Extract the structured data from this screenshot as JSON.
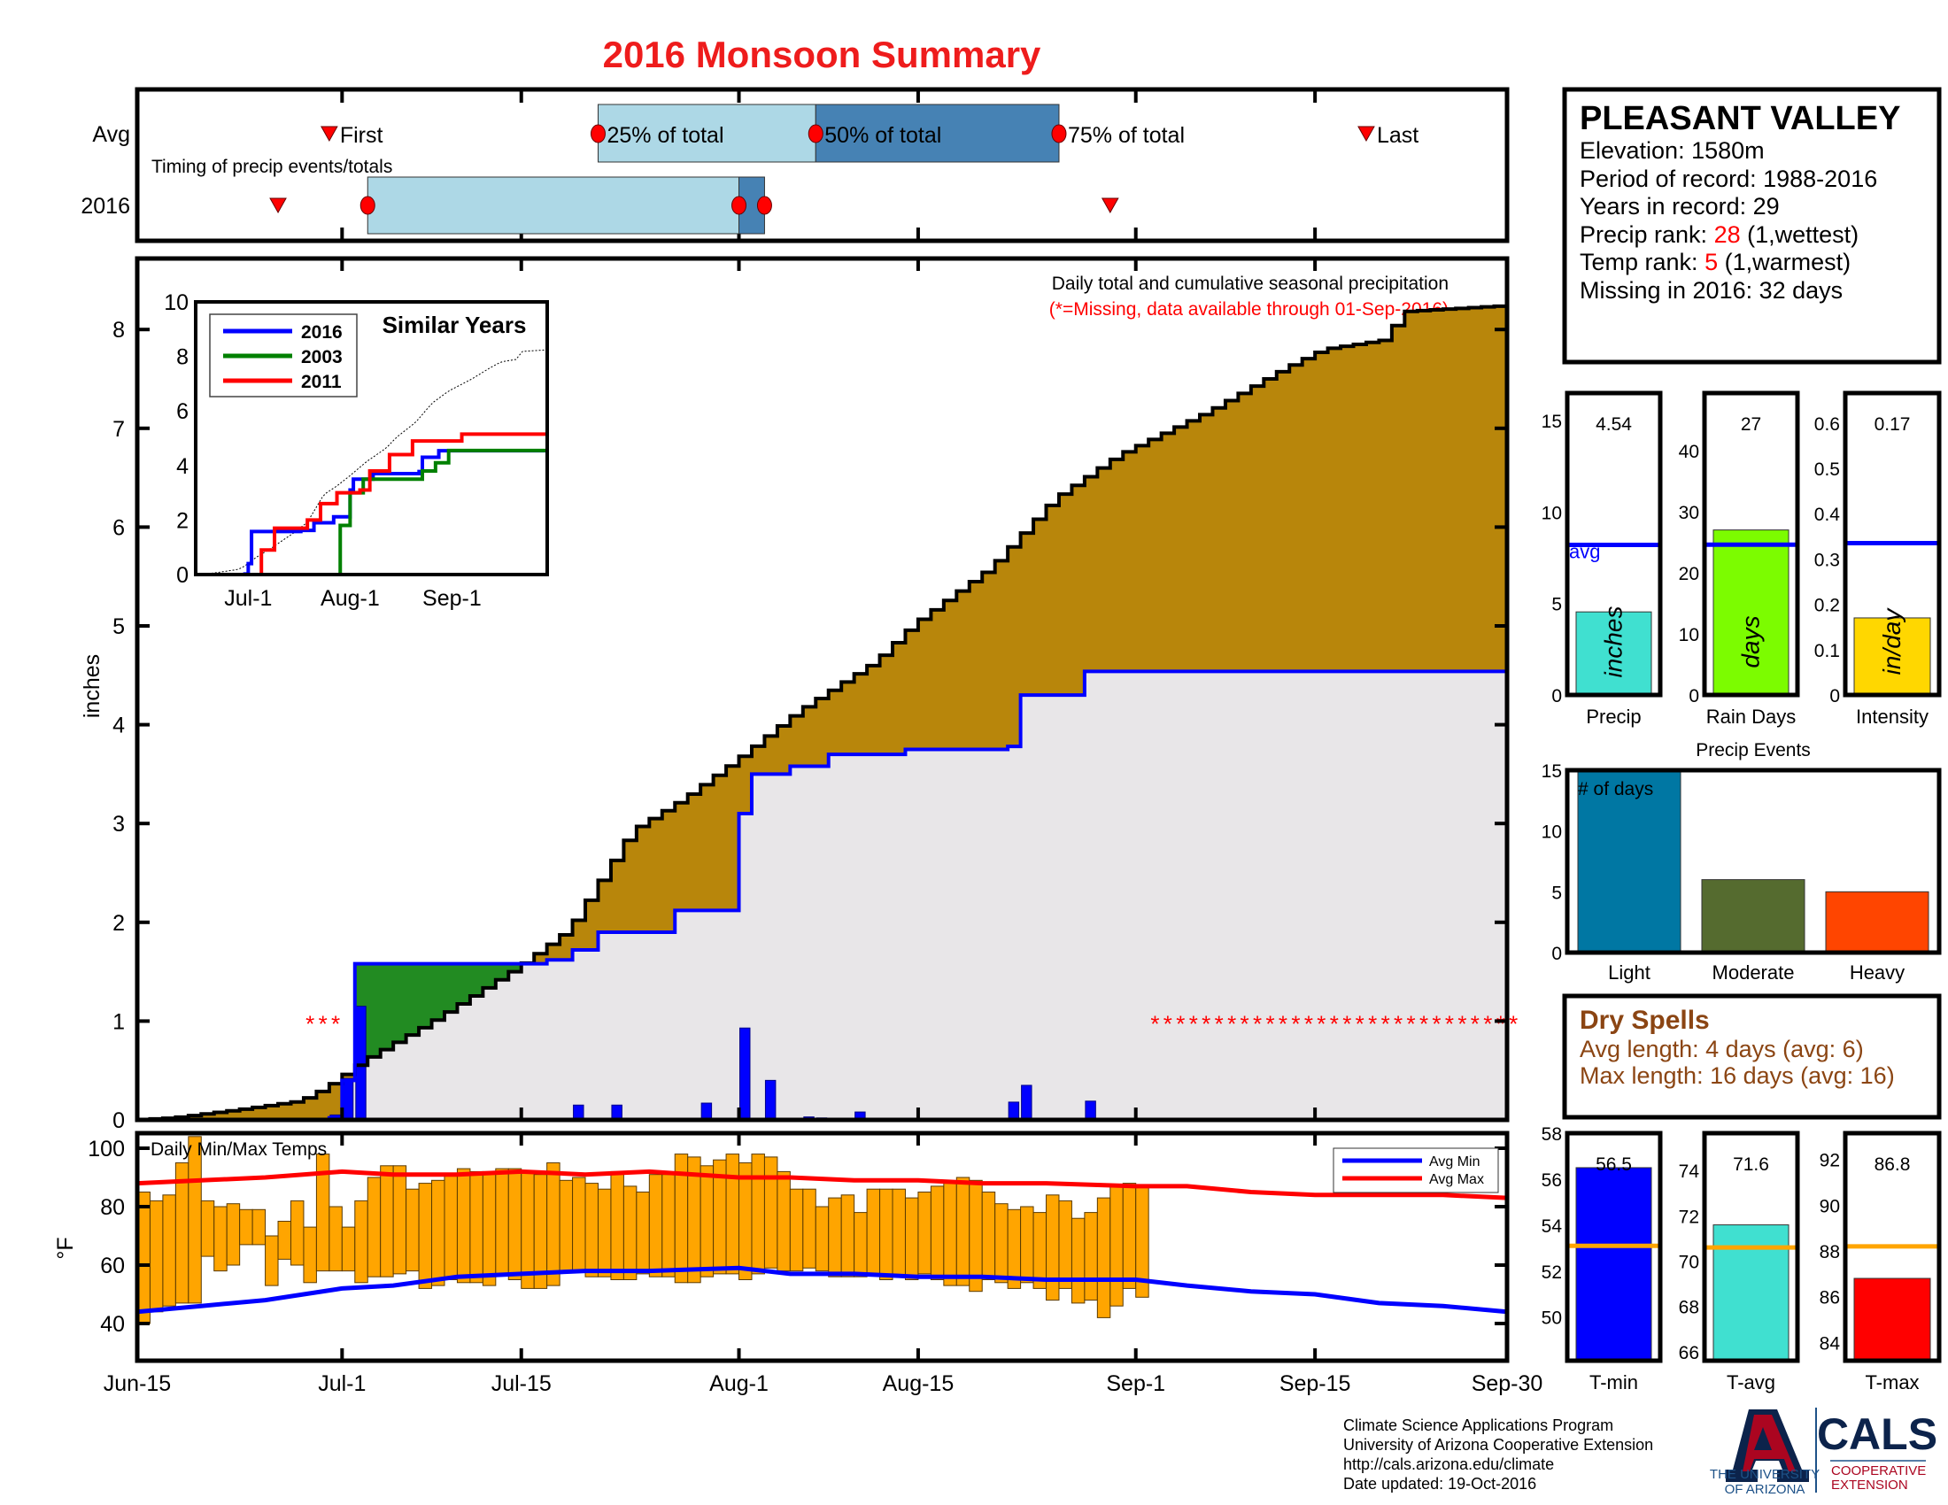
{
  "title": "2016 Monsoon Summary",
  "colors": {
    "title": "#ee1c1c",
    "avg_fill": "#b8860b",
    "surplus_fill": "#228b22",
    "base_fill": "#e8e6e8",
    "cum_2016": "#0000ff",
    "daily_bar": "#0000ff",
    "temp_bar": "#ffa500",
    "avg_min": "#0000ff",
    "avg_max": "#ff0000",
    "missing": "#ff0000",
    "brown_text": "#8b4513",
    "light_box": "#add8e6",
    "dark_box": "#4682b4"
  },
  "timing": {
    "row_labels": [
      "Avg",
      "2016"
    ],
    "caption": "Timing of precip events/totals",
    "labels": {
      "first": "First",
      "p25": "25% of total",
      "p50": "50% of total",
      "p75": "75% of total",
      "last": "Last"
    },
    "avg": {
      "first": "06-30",
      "p25": "07-21",
      "p50": "08-07",
      "p75": "08-26",
      "last": "09-19"
    },
    "y2016": {
      "first": "06-26",
      "p25": "07-03",
      "p50": "08-01",
      "p75": "08-03",
      "last": "08-30"
    }
  },
  "info": {
    "station": "PLEASANT VALLEY",
    "elevation": "Elevation: 1580m",
    "period": "Period of record: 1988-2016",
    "years": "Years in record: 29",
    "precip_rank_label": "Precip rank: ",
    "precip_rank": "28",
    "precip_rank_note": " (1,wettest)",
    "temp_rank_label": "Temp rank: ",
    "temp_rank": "5",
    "temp_rank_note": " (1,warmest)",
    "missing": "Missing in 2016: 32 days"
  },
  "dry_spells": {
    "title": "Dry Spells",
    "avg_length": "Avg length: 4 days (avg: 6)",
    "max_length": "Max length: 16 days (avg: 16)"
  },
  "footer": {
    "lines": [
      "Climate Science Applications Program",
      "University of Arizona Cooperative Extension",
      "http://cals.arizona.edu/climate",
      " Date updated: 19-Oct-2016"
    ],
    "logo_ua": [
      "THE UNIVERSITY",
      "OF ARIZONA"
    ],
    "logo_cals": "CALS",
    "logo_coop": [
      "COOPERATIVE",
      "EXTENSION"
    ]
  },
  "chart_data": [
    {
      "id": "precip",
      "type": "area",
      "ylabel": "inches",
      "ylim": [
        0,
        8.72
      ],
      "yticks": [
        0,
        1,
        2,
        3,
        4,
        5,
        6,
        7,
        8
      ],
      "xlim": [
        "06-15",
        "09-30"
      ],
      "xticks": [
        {
          "d": "06-15",
          "label": "Jun-15"
        },
        {
          "d": "07-01",
          "label": "Jul-1"
        },
        {
          "d": "07-15",
          "label": "Jul-15"
        },
        {
          "d": "08-01",
          "label": "Aug-1"
        },
        {
          "d": "08-15",
          "label": "Aug-15"
        },
        {
          "d": "09-01",
          "label": "Sep-1"
        },
        {
          "d": "09-15",
          "label": "Sep-15"
        },
        {
          "d": "09-30",
          "label": "Sep-30"
        }
      ],
      "annotation": "Daily total and cumulative seasonal precipitation",
      "missing_note": "(*=Missing, data available through 01-Sep-2016)",
      "missing_marker": "*",
      "missing_level": 1,
      "missing_days": [
        "06-28",
        "06-29",
        "06-30",
        "09-02",
        "09-03",
        "09-04",
        "09-05",
        "09-06",
        "09-07",
        "09-08",
        "09-09",
        "09-10",
        "09-11",
        "09-12",
        "09-13",
        "09-14",
        "09-15",
        "09-16",
        "09-17",
        "09-18",
        "09-19",
        "09-20",
        "09-21",
        "09-22",
        "09-23",
        "09-24",
        "09-25",
        "09-26",
        "09-27",
        "09-28",
        "09-29",
        "09-30"
      ],
      "avg_cumulative": [
        [
          "06-15",
          0
        ],
        [
          "06-18",
          0.02
        ],
        [
          "06-23",
          0.1
        ],
        [
          "06-28",
          0.19
        ],
        [
          "06-30",
          0.32
        ],
        [
          "07-03",
          0.6
        ],
        [
          "07-08",
          0.97
        ],
        [
          "07-15",
          1.54
        ],
        [
          "07-19",
          1.92
        ],
        [
          "07-24",
          2.93
        ],
        [
          "07-28",
          3.25
        ],
        [
          "08-01",
          3.63
        ],
        [
          "08-06",
          4.14
        ],
        [
          "08-12",
          4.64
        ],
        [
          "08-15",
          5.02
        ],
        [
          "08-21",
          5.59
        ],
        [
          "08-26",
          6.29
        ],
        [
          "08-31",
          6.73
        ],
        [
          "09-07",
          7.17
        ],
        [
          "09-13",
          7.61
        ],
        [
          "09-16",
          7.8
        ],
        [
          "09-21",
          7.9
        ],
        [
          "09-22",
          8.18
        ],
        [
          "09-30",
          8.24
        ]
      ],
      "cumulative_2016": [
        [
          "06-15",
          0
        ],
        [
          "06-30",
          0.02
        ],
        [
          "07-01",
          0.4
        ],
        [
          "07-02",
          1.58
        ],
        [
          "07-17",
          1.62
        ],
        [
          "07-19",
          1.72
        ],
        [
          "07-21",
          1.9
        ],
        [
          "07-27",
          2.12
        ],
        [
          "08-01",
          3.1
        ],
        [
          "08-02",
          3.5
        ],
        [
          "08-05",
          3.58
        ],
        [
          "08-08",
          3.7
        ],
        [
          "08-14",
          3.75
        ],
        [
          "08-22",
          3.78
        ],
        [
          "08-23",
          4.3
        ],
        [
          "08-28",
          4.54
        ],
        [
          "09-30",
          4.54
        ]
      ],
      "daily_2016": [
        [
          "06-30",
          0.05
        ],
        [
          "07-01",
          0.42
        ],
        [
          "07-02",
          1.15
        ],
        [
          "07-19",
          0.15
        ],
        [
          "07-22",
          0.15
        ],
        [
          "07-29",
          0.17
        ],
        [
          "08-01",
          0.93
        ],
        [
          "08-03",
          0.4
        ],
        [
          "08-06",
          0.03
        ],
        [
          "08-07",
          0.02
        ],
        [
          "08-10",
          0.08
        ],
        [
          "08-22",
          0.18
        ],
        [
          "08-23",
          0.35
        ],
        [
          "08-28",
          0.19
        ]
      ]
    },
    {
      "id": "similar_years",
      "type": "line",
      "title": "Similar Years",
      "ylim": [
        0,
        10
      ],
      "yticks": [
        0,
        2,
        4,
        6,
        8,
        10
      ],
      "xticks": [
        {
          "d": "07-01",
          "label": "Jul-1"
        },
        {
          "d": "08-01",
          "label": "Aug-1"
        },
        {
          "d": "09-01",
          "label": "Sep-1"
        }
      ],
      "series": [
        {
          "name": "2016",
          "color": "#0000ff",
          "points": [
            [
              "06-15",
              0
            ],
            [
              "06-30",
              0.02
            ],
            [
              "07-01",
              0.4
            ],
            [
              "07-02",
              1.58
            ],
            [
              "07-17",
              1.62
            ],
            [
              "07-21",
              1.9
            ],
            [
              "07-27",
              2.12
            ],
            [
              "08-01",
              3.1
            ],
            [
              "08-02",
              3.5
            ],
            [
              "08-08",
              3.7
            ],
            [
              "08-22",
              3.78
            ],
            [
              "08-23",
              4.3
            ],
            [
              "08-28",
              4.54
            ],
            [
              "09-30",
              4.54
            ]
          ]
        },
        {
          "name": "2003",
          "color": "#008000",
          "points": [
            [
              "06-15",
              0
            ],
            [
              "07-27",
              0
            ],
            [
              "07-29",
              1.8
            ],
            [
              "08-01",
              3.0
            ],
            [
              "08-05",
              3.5
            ],
            [
              "08-20",
              3.5
            ],
            [
              "08-23",
              3.8
            ],
            [
              "08-27",
              4.1
            ],
            [
              "08-31",
              4.55
            ],
            [
              "09-30",
              4.55
            ]
          ]
        },
        {
          "name": "2011",
          "color": "#ff0000",
          "points": [
            [
              "06-15",
              0
            ],
            [
              "07-04",
              0
            ],
            [
              "07-05",
              0.9
            ],
            [
              "07-09",
              1.7
            ],
            [
              "07-19",
              2.0
            ],
            [
              "07-23",
              2.6
            ],
            [
              "07-28",
              3.0
            ],
            [
              "08-04",
              3.1
            ],
            [
              "08-07",
              3.8
            ],
            [
              "08-13",
              4.4
            ],
            [
              "08-20",
              4.9
            ],
            [
              "09-02",
              4.9
            ],
            [
              "09-04",
              5.15
            ],
            [
              "09-30",
              5.15
            ]
          ]
        }
      ]
    },
    {
      "id": "temps",
      "type": "bar",
      "title": "Daily Min/Max Temps",
      "ylabel": "°F",
      "ylim": [
        33,
        108
      ],
      "yticks": [
        40,
        60,
        80,
        100
      ],
      "start": "06-15",
      "daily_max": [
        85,
        82,
        84,
        95,
        104,
        82,
        80,
        81,
        79,
        79,
        70,
        75,
        82,
        73,
        98,
        80,
        73,
        82,
        90,
        94,
        94,
        86,
        88,
        89,
        91,
        93,
        92,
        92,
        93,
        93,
        92,
        91,
        95,
        89,
        90,
        88,
        86,
        92,
        87,
        85,
        91,
        91,
        98,
        97,
        94,
        96,
        98,
        95,
        98,
        97,
        92,
        86,
        86,
        80,
        83,
        84,
        78,
        86,
        86,
        86,
        83,
        85,
        87,
        88,
        90,
        89,
        85,
        81,
        79,
        80,
        78,
        84,
        82,
        76,
        78,
        83,
        87,
        88,
        87
      ],
      "daily_min": [
        40,
        44,
        46,
        47,
        47,
        63,
        58,
        60,
        67,
        67,
        53,
        62,
        60,
        54,
        58,
        58,
        58,
        54,
        56,
        56,
        57,
        58,
        52,
        53,
        55,
        54,
        54,
        53,
        57,
        55,
        52,
        52,
        53,
        58,
        58,
        56,
        56,
        55,
        55,
        57,
        56,
        56,
        54,
        54,
        56,
        57,
        57,
        55,
        57,
        59,
        58,
        58,
        59,
        58,
        56,
        56,
        56,
        57,
        55,
        56,
        55,
        57,
        55,
        53,
        53,
        51,
        55,
        54,
        52,
        54,
        52,
        48,
        52,
        47,
        48,
        42,
        46,
        52,
        49
      ],
      "series": [
        {
          "name": "Avg Min",
          "color": "#0000ff",
          "points": [
            [
              "06-15",
              44
            ],
            [
              "06-20",
              46
            ],
            [
              "06-25",
              48
            ],
            [
              "07-01",
              52
            ],
            [
              "07-05",
              53
            ],
            [
              "07-10",
              56
            ],
            [
              "07-15",
              57
            ],
            [
              "07-20",
              58
            ],
            [
              "07-25",
              58
            ],
            [
              "08-01",
              59
            ],
            [
              "08-05",
              57
            ],
            [
              "08-10",
              57
            ],
            [
              "08-15",
              56
            ],
            [
              "08-20",
              56
            ],
            [
              "08-25",
              55
            ],
            [
              "09-01",
              55
            ],
            [
              "09-05",
              53
            ],
            [
              "09-10",
              51
            ],
            [
              "09-15",
              50
            ],
            [
              "09-20",
              47
            ],
            [
              "09-25",
              46
            ],
            [
              "09-30",
              44
            ]
          ]
        },
        {
          "name": "Avg Max",
          "color": "#ff0000",
          "points": [
            [
              "06-15",
              88
            ],
            [
              "06-20",
              89
            ],
            [
              "06-25",
              90
            ],
            [
              "07-01",
              92
            ],
            [
              "07-05",
              91
            ],
            [
              "07-10",
              91
            ],
            [
              "07-15",
              92
            ],
            [
              "07-20",
              91
            ],
            [
              "07-25",
              92
            ],
            [
              "08-01",
              90
            ],
            [
              "08-05",
              90
            ],
            [
              "08-10",
              89
            ],
            [
              "08-15",
              89
            ],
            [
              "08-20",
              88
            ],
            [
              "08-25",
              88
            ],
            [
              "09-01",
              87
            ],
            [
              "09-05",
              87
            ],
            [
              "09-10",
              85
            ],
            [
              "09-15",
              84
            ],
            [
              "09-20",
              84
            ],
            [
              "09-25",
              84
            ],
            [
              "09-30",
              83
            ]
          ]
        }
      ]
    },
    {
      "id": "precip_total",
      "type": "bar",
      "category": "Precip",
      "unit": "inches",
      "value": 4.54,
      "value_label": "4.54",
      "avg": 8.2,
      "avg_label": "avg",
      "ylim": [
        0,
        16.5
      ],
      "yticks": [
        0,
        5,
        10,
        15
      ],
      "color": "#40e0d0",
      "avg_color": "#0000ff"
    },
    {
      "id": "rain_days",
      "type": "bar",
      "category": "Rain Days",
      "unit": "days",
      "value": 27,
      "value_label": "27",
      "avg": 24.6,
      "ylim": [
        0,
        49.4
      ],
      "yticks": [
        0,
        10,
        20,
        30,
        40
      ],
      "color": "#7cfc00",
      "avg_color": "#0000ff"
    },
    {
      "id": "intensity",
      "type": "bar",
      "category": "Intensity",
      "unit": "in/day",
      "value": 0.17,
      "value_label": "0.17",
      "avg": 0.335,
      "ylim": [
        0,
        0.666
      ],
      "yticks": [
        0,
        0.1,
        0.2,
        0.3,
        0.4,
        0.5,
        0.6
      ],
      "color": "#ffd700",
      "avg_color": "#0000ff"
    },
    {
      "id": "precip_events",
      "type": "bar",
      "title": "Precip Events",
      "ylabel": "# of days",
      "categories": [
        "Light",
        "Moderate",
        "Heavy"
      ],
      "values": [
        15,
        6,
        5
      ],
      "colors": [
        "#0077a3",
        "#556b2f",
        "#ff4500"
      ],
      "ylim": [
        0,
        15
      ],
      "yticks": [
        0,
        5,
        10,
        15
      ]
    },
    {
      "id": "t_min",
      "type": "bar",
      "category": "T-min",
      "value": 56.5,
      "value_label": "56.5",
      "avg": 53.1,
      "ylim": [
        48.1,
        58
      ],
      "yticks": [
        50,
        52,
        54,
        56,
        58
      ],
      "color": "#0000ff",
      "avg_color": "#ffa500"
    },
    {
      "id": "t_avg",
      "type": "bar",
      "category": "T-avg",
      "value": 71.6,
      "value_label": "71.6",
      "avg": 70.6,
      "ylim": [
        65.6,
        75.65
      ],
      "yticks": [
        66,
        68,
        70,
        72,
        74
      ],
      "color": "#40e0d0",
      "avg_color": "#ffa500"
    },
    {
      "id": "t_max",
      "type": "bar",
      "category": "T-max",
      "value": 86.8,
      "value_label": "86.8",
      "avg": 88.2,
      "ylim": [
        83.2,
        93.15
      ],
      "yticks": [
        84,
        86,
        88,
        90,
        92
      ],
      "color": "#ff0000",
      "avg_color": "#ffa500"
    }
  ]
}
